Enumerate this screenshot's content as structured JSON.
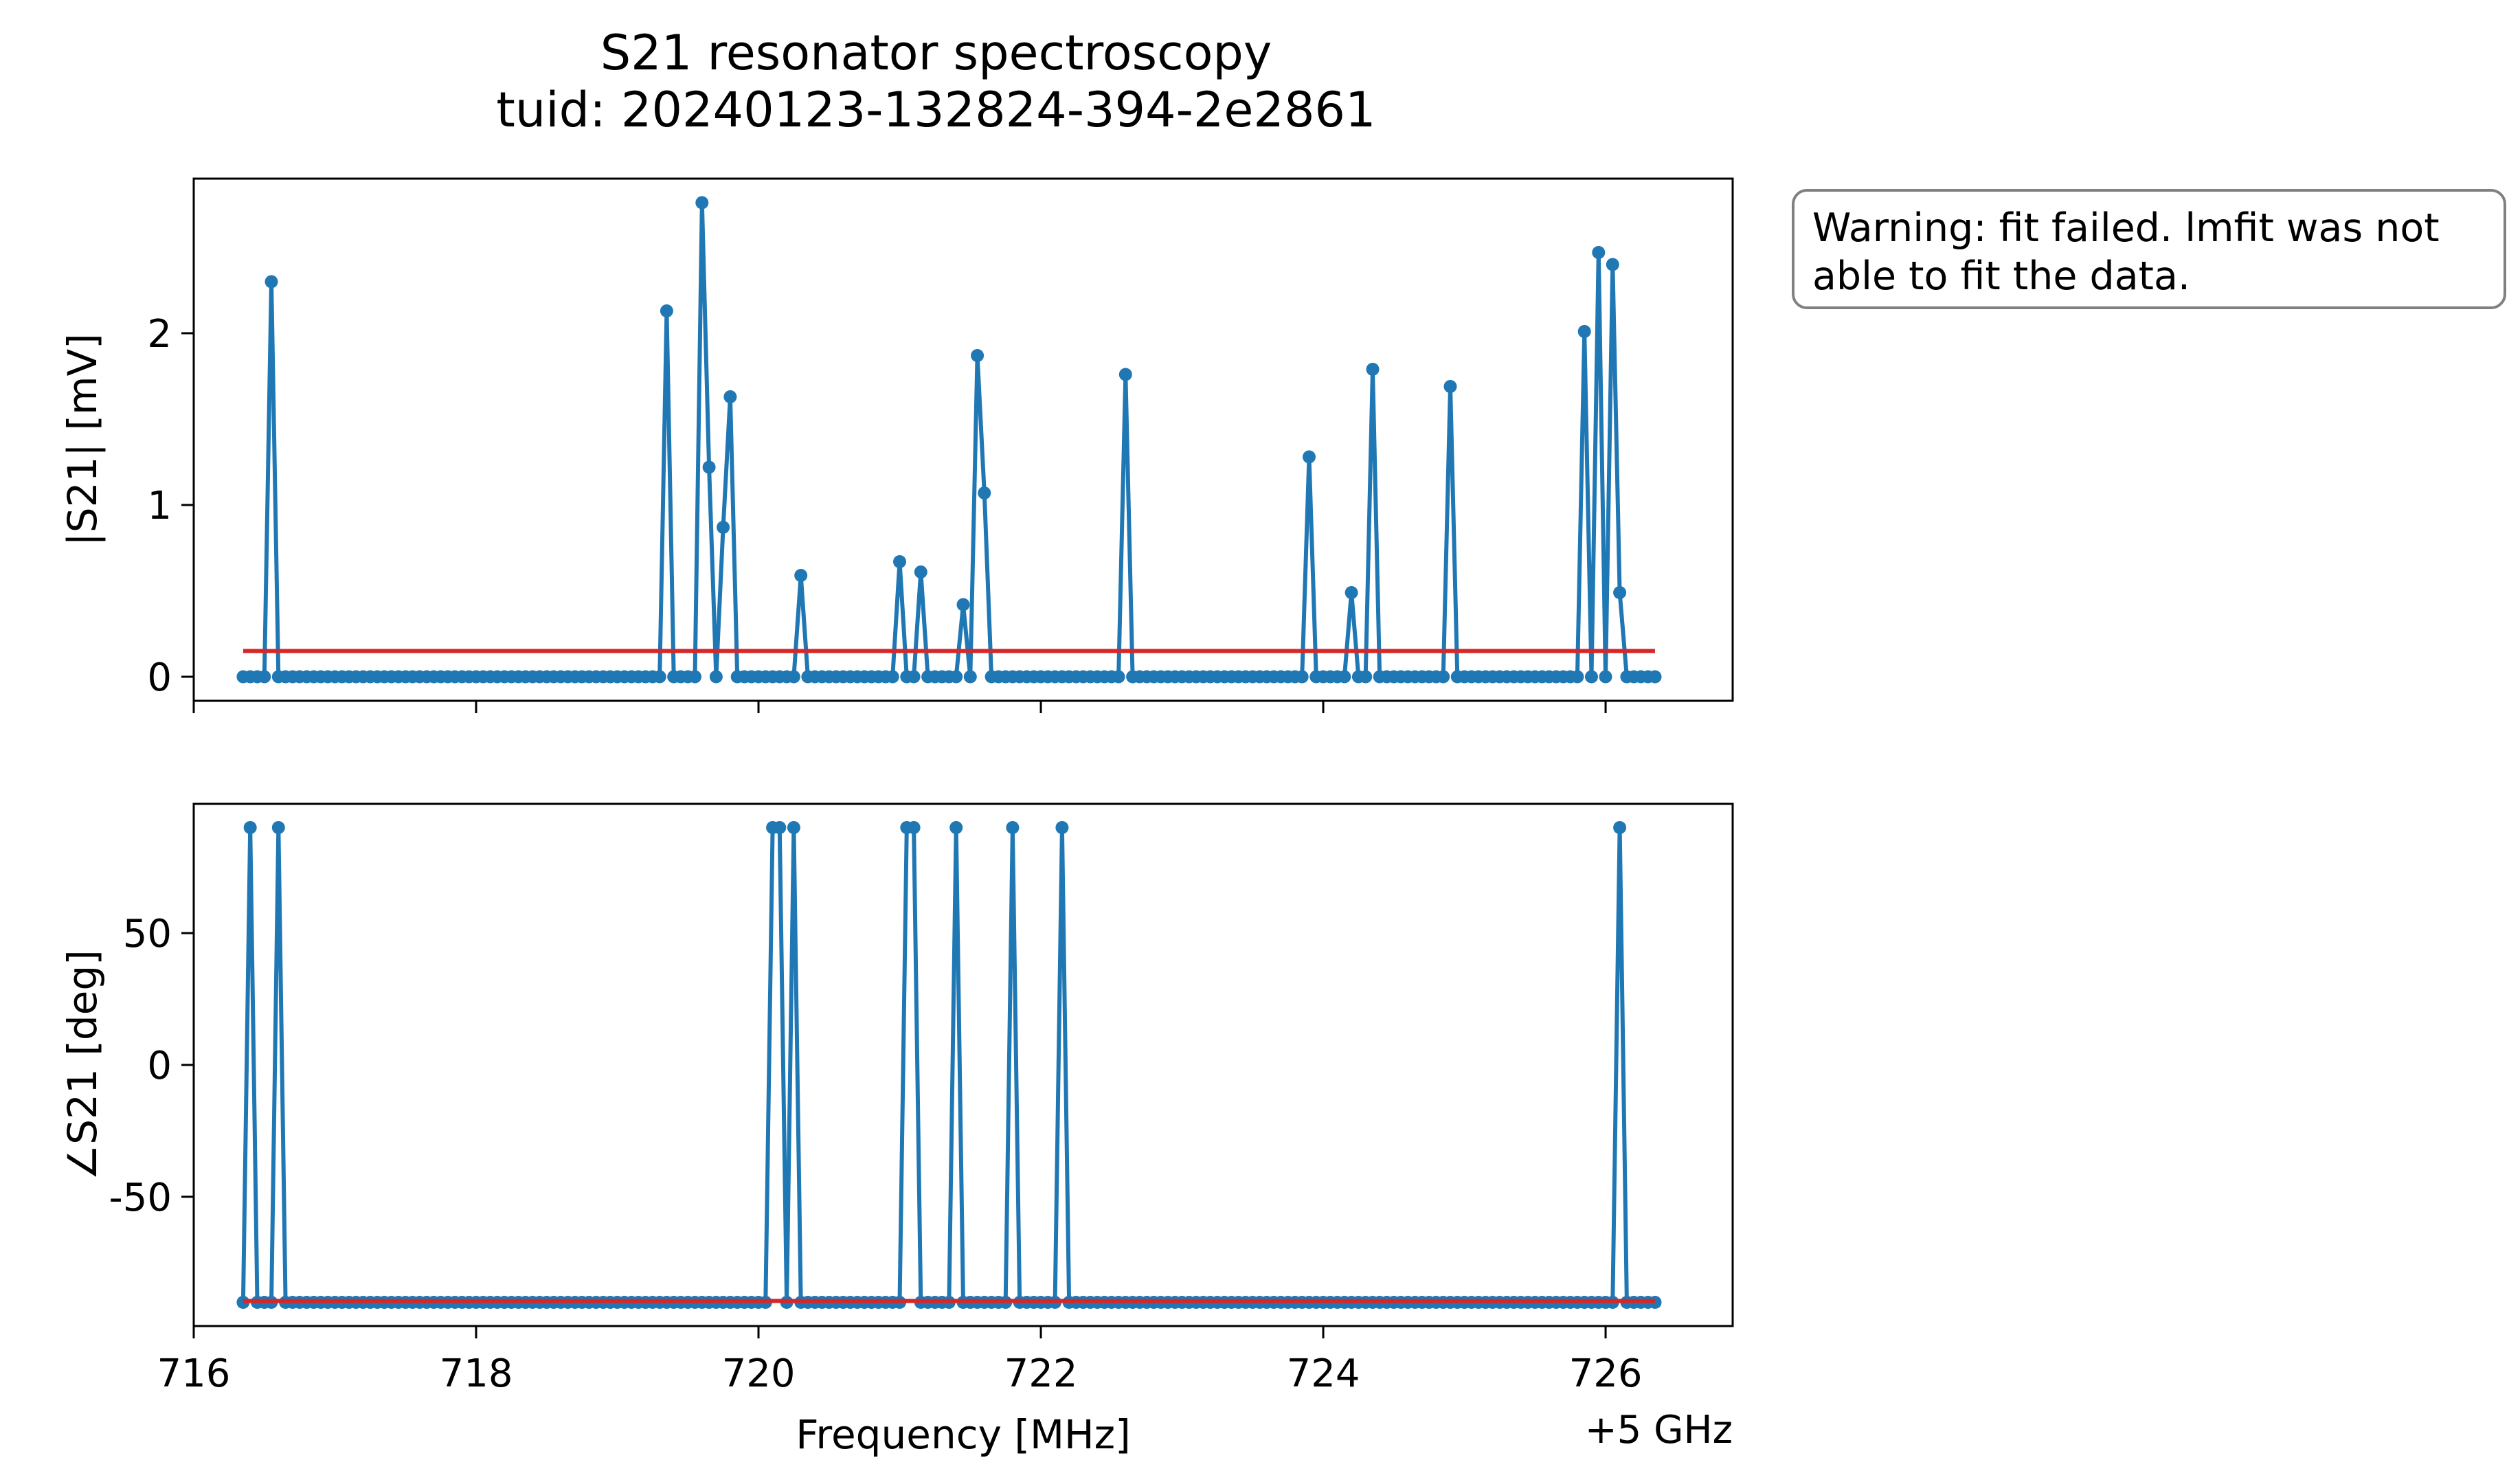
{
  "title": {
    "line1": "S21 resonator spectroscopy",
    "line2": "tuid: 20240123-132824-394-2e2861"
  },
  "warning": {
    "line1": "Warning: fit failed. lmfit was not",
    "line2": "able to fit the data."
  },
  "xlabel": "Frequency [MHz]",
  "x_offset_label": "+5 GHz",
  "colors": {
    "data": "#1f77b4",
    "fit": "#d62728",
    "warning_border": "#808080"
  },
  "chart_data": [
    {
      "type": "line",
      "title": "",
      "ylabel": "|S21| [mV]",
      "xlabel": "",
      "xlim": [
        716.0,
        726.9
      ],
      "ylim": [
        -0.14,
        2.9
      ],
      "xticks": [
        716,
        718,
        720,
        722,
        724,
        726
      ],
      "yticks": [
        0,
        1,
        2
      ],
      "ytick_labels": [
        "0",
        "1",
        "2"
      ],
      "x_start": 716.35,
      "x_step": 0.05,
      "n_points": 201,
      "spikes": [
        [
          716.55,
          2.3
        ],
        [
          719.35,
          2.13
        ],
        [
          719.6,
          2.76
        ],
        [
          719.65,
          1.22
        ],
        [
          719.75,
          0.87
        ],
        [
          719.8,
          1.63
        ],
        [
          720.3,
          0.59
        ],
        [
          721.0,
          0.67
        ],
        [
          721.15,
          0.61
        ],
        [
          721.45,
          0.42
        ],
        [
          721.55,
          1.87
        ],
        [
          721.6,
          1.07
        ],
        [
          722.6,
          1.76
        ],
        [
          723.9,
          1.28
        ],
        [
          724.2,
          0.49
        ],
        [
          724.35,
          1.79
        ],
        [
          724.9,
          1.69
        ],
        [
          725.85,
          2.01
        ],
        [
          725.95,
          2.47
        ],
        [
          726.05,
          2.4
        ],
        [
          726.1,
          0.49
        ]
      ],
      "baseline": 0.0,
      "series": [
        {
          "kind": "data"
        },
        {
          "kind": "fit",
          "x": [
            716.35,
            726.35
          ],
          "y": [
            0.15,
            0.15
          ]
        }
      ]
    },
    {
      "type": "line",
      "title": "",
      "ylabel": "∠S21 [deg]",
      "xlabel": "Frequency [MHz]",
      "xlim": [
        716.0,
        726.9
      ],
      "ylim": [
        -99,
        99
      ],
      "xticks": [
        716,
        718,
        720,
        722,
        724,
        726
      ],
      "xtick_labels": [
        "716",
        "718",
        "720",
        "722",
        "724",
        "726"
      ],
      "yticks": [
        50,
        0,
        -50
      ],
      "ytick_labels": [
        "50",
        "0",
        "-50"
      ],
      "x_start": 716.35,
      "x_step": 0.05,
      "n_points": 201,
      "spikes": [
        [
          716.4,
          90
        ],
        [
          716.6,
          90
        ],
        [
          720.1,
          90
        ],
        [
          720.15,
          90
        ],
        [
          720.25,
          90
        ],
        [
          721.05,
          90
        ],
        [
          721.1,
          90
        ],
        [
          721.4,
          90
        ],
        [
          721.8,
          90
        ],
        [
          722.15,
          90
        ],
        [
          726.1,
          90
        ]
      ],
      "baseline": -90,
      "series": [
        {
          "kind": "data"
        },
        {
          "kind": "fit",
          "x": [
            716.35,
            726.35
          ],
          "y": [
            -89.5,
            -89.5
          ]
        }
      ]
    }
  ]
}
